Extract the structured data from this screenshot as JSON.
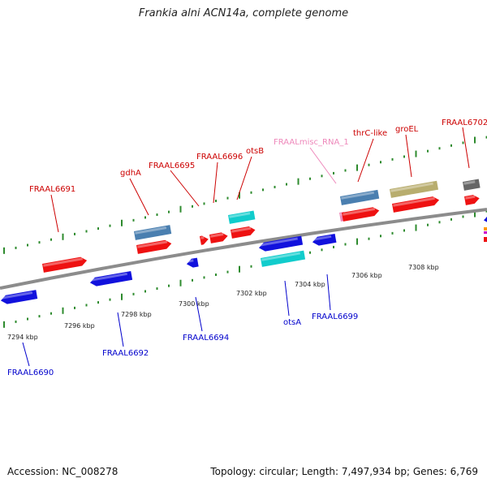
{
  "title": "Frankia alni ACN14a, complete genome",
  "footer": {
    "accession": "Accession: NC_008278",
    "summary": "Topology: circular; Length: 7,497,934 bp; Genes: 6,769"
  },
  "colors": {
    "backbone": "#8c8c8c",
    "tick": "#2e8b2e",
    "forward_label": "#cc0000",
    "reverse_label": "#0000cc",
    "misc_label": "#ee88bb",
    "gene_red": "#ee1111",
    "gene_blue": "#1111dd",
    "gene_cyan": "#11cccc",
    "gene_steelblue": "#4a7fb0",
    "gene_khaki": "#b8ad6e",
    "gene_grey": "#666666",
    "gene_pink": "#ee88bb"
  },
  "scale_ticks": [
    "7294 kbp",
    "7296 kbp",
    "7298 kbp",
    "7300 kbp",
    "7302 kbp",
    "7304 kbp",
    "7306 kbp",
    "7308 kbp"
  ],
  "forward_labels": [
    "FRAAL6691",
    "gdhA",
    "FRAAL6695",
    "FRAAL6696",
    "otsB",
    "FRAALmisc_RNA_1",
    "thrC-like",
    "groEL",
    "FRAAL6702"
  ],
  "reverse_labels": [
    "FRAAL6690",
    "FRAAL6692",
    "FRAAL6694",
    "otsA",
    "FRAAL6699"
  ]
}
